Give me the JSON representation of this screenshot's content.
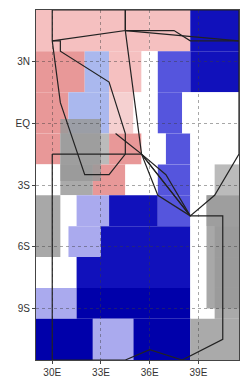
{
  "chart_data": {
    "type": "map",
    "xlim": [
      29.0,
      41.5
    ],
    "ylim": [
      -11.5,
      5.5
    ],
    "xticks": [
      {
        "value": 30,
        "label": "30E"
      },
      {
        "value": 33,
        "label": "33E"
      },
      {
        "value": 36,
        "label": "36E"
      },
      {
        "value": 39,
        "label": "39E"
      }
    ],
    "yticks": [
      {
        "value": 3,
        "label": "3N"
      },
      {
        "value": 0,
        "label": "EQ"
      },
      {
        "value": -3,
        "label": "3S"
      },
      {
        "value": -6,
        "label": "6S"
      },
      {
        "value": -9,
        "label": "9S"
      }
    ],
    "grid": true,
    "blocks": [
      {
        "x0": 29.0,
        "x1": 36.0,
        "y0": 3.5,
        "y1": 5.5,
        "color": "#f5c0c0"
      },
      {
        "x0": 36.0,
        "x1": 38.5,
        "y0": 3.5,
        "y1": 5.5,
        "color": "#f5c0c0"
      },
      {
        "x0": 38.5,
        "x1": 41.5,
        "y0": 3.5,
        "y1": 5.5,
        "color": "#1111bb"
      },
      {
        "x0": 29.0,
        "x1": 32.0,
        "y0": 1.5,
        "y1": 3.5,
        "color": "#e89898"
      },
      {
        "x0": 32.0,
        "x1": 33.5,
        "y0": 1.5,
        "y1": 3.5,
        "color": "#aab8ee"
      },
      {
        "x0": 33.5,
        "x1": 35.5,
        "y0": 1.5,
        "y1": 3.5,
        "color": "#f5c0c0"
      },
      {
        "x0": 35.5,
        "x1": 36.5,
        "y0": 1.5,
        "y1": 3.5,
        "color": "#ffffff"
      },
      {
        "x0": 36.5,
        "x1": 38.5,
        "y0": 1.5,
        "y1": 3.5,
        "color": "#5555dd"
      },
      {
        "x0": 38.5,
        "x1": 41.5,
        "y0": 1.5,
        "y1": 3.5,
        "color": "#1111bb"
      },
      {
        "x0": 29.0,
        "x1": 31.0,
        "y0": -0.5,
        "y1": 1.5,
        "color": "#e89898"
      },
      {
        "x0": 31.0,
        "x1": 33.5,
        "y0": -0.5,
        "y1": 1.5,
        "color": "#aab8ee"
      },
      {
        "x0": 33.5,
        "x1": 35.0,
        "y0": -0.5,
        "y1": 1.5,
        "color": "#f5d0d0"
      },
      {
        "x0": 35.0,
        "x1": 36.5,
        "y0": -0.5,
        "y1": 1.5,
        "color": "#ffffff"
      },
      {
        "x0": 36.5,
        "x1": 38.0,
        "y0": -0.5,
        "y1": 1.5,
        "color": "#5555dd"
      },
      {
        "x0": 38.0,
        "x1": 41.5,
        "y0": -0.5,
        "y1": 1.5,
        "color": "#ffffff"
      },
      {
        "x0": 29.0,
        "x1": 30.5,
        "y0": -2.0,
        "y1": -0.5,
        "color": "#e89898"
      },
      {
        "x0": 30.5,
        "x1": 33.5,
        "y0": -2.0,
        "y1": -0.5,
        "color": "#bbbbbb"
      },
      {
        "x0": 33.5,
        "x1": 35.5,
        "y0": -2.0,
        "y1": -0.5,
        "color": "#e89898"
      },
      {
        "x0": 35.5,
        "x1": 37.0,
        "y0": -2.0,
        "y1": -0.5,
        "color": "#ffffff"
      },
      {
        "x0": 37.0,
        "x1": 38.5,
        "y0": -2.0,
        "y1": -0.5,
        "color": "#5555dd"
      },
      {
        "x0": 38.5,
        "x1": 41.5,
        "y0": -2.0,
        "y1": -0.5,
        "color": "#ffffff"
      },
      {
        "x0": 29.0,
        "x1": 30.5,
        "y0": -3.5,
        "y1": -2.0,
        "color": "#ffffff"
      },
      {
        "x0": 30.5,
        "x1": 32.5,
        "y0": -3.5,
        "y1": -2.0,
        "color": "#aaaaaa"
      },
      {
        "x0": 32.5,
        "x1": 34.5,
        "y0": -3.5,
        "y1": -2.0,
        "color": "#e89898"
      },
      {
        "x0": 34.5,
        "x1": 36.5,
        "y0": -3.5,
        "y1": -2.0,
        "color": "#ffffff"
      },
      {
        "x0": 36.5,
        "x1": 38.5,
        "y0": -3.5,
        "y1": -2.0,
        "color": "#5555dd"
      },
      {
        "x0": 38.5,
        "x1": 40.0,
        "y0": -3.5,
        "y1": -2.0,
        "color": "#ffffff"
      },
      {
        "x0": 40.0,
        "x1": 41.5,
        "y0": -3.5,
        "y1": -2.0,
        "color": "#bbbbbb"
      },
      {
        "x0": 29.0,
        "x1": 31.5,
        "y0": -5.0,
        "y1": -3.5,
        "color": "#ffffff"
      },
      {
        "x0": 31.5,
        "x1": 33.5,
        "y0": -5.0,
        "y1": -3.5,
        "color": "#aaaaee"
      },
      {
        "x0": 33.5,
        "x1": 36.5,
        "y0": -5.0,
        "y1": -3.5,
        "color": "#1111bb"
      },
      {
        "x0": 36.5,
        "x1": 38.5,
        "y0": -5.0,
        "y1": -3.5,
        "color": "#5555dd"
      },
      {
        "x0": 38.5,
        "x1": 39.5,
        "y0": -5.0,
        "y1": -3.5,
        "color": "#ffffff"
      },
      {
        "x0": 39.5,
        "x1": 41.5,
        "y0": -5.0,
        "y1": -3.5,
        "color": "#bbbbbb"
      },
      {
        "x0": 29.0,
        "x1": 31.0,
        "y0": -6.5,
        "y1": -5.0,
        "color": "#ffffff"
      },
      {
        "x0": 31.0,
        "x1": 33.0,
        "y0": -6.5,
        "y1": -5.0,
        "color": "#aaaaee"
      },
      {
        "x0": 33.0,
        "x1": 38.5,
        "y0": -6.5,
        "y1": -5.0,
        "color": "#1111bb"
      },
      {
        "x0": 38.5,
        "x1": 40.0,
        "y0": -6.5,
        "y1": -5.0,
        "color": "#ffffff"
      },
      {
        "x0": 40.0,
        "x1": 41.5,
        "y0": -6.5,
        "y1": -5.0,
        "color": "#aaaaaa"
      },
      {
        "x0": 29.0,
        "x1": 31.5,
        "y0": -8.0,
        "y1": -6.5,
        "color": "#ffffff"
      },
      {
        "x0": 31.5,
        "x1": 38.5,
        "y0": -8.0,
        "y1": -6.5,
        "color": "#1111bb"
      },
      {
        "x0": 38.5,
        "x1": 40.0,
        "y0": -8.0,
        "y1": -6.5,
        "color": "#ffffff"
      },
      {
        "x0": 40.0,
        "x1": 41.5,
        "y0": -8.0,
        "y1": -6.5,
        "color": "#aaaaaa"
      },
      {
        "x0": 29.0,
        "x1": 31.5,
        "y0": -9.5,
        "y1": -8.0,
        "color": "#aaaaee"
      },
      {
        "x0": 31.5,
        "x1": 38.5,
        "y0": -9.5,
        "y1": -8.0,
        "color": "#0000aa"
      },
      {
        "x0": 38.5,
        "x1": 40.0,
        "y0": -9.5,
        "y1": -8.0,
        "color": "#ffffff"
      },
      {
        "x0": 40.0,
        "x1": 41.5,
        "y0": -9.5,
        "y1": -8.0,
        "color": "#aaaaaa"
      },
      {
        "x0": 29.0,
        "x1": 32.5,
        "y0": -11.5,
        "y1": -9.5,
        "color": "#0000aa"
      },
      {
        "x0": 32.5,
        "x1": 35.0,
        "y0": -11.5,
        "y1": -9.5,
        "color": "#aaaaee"
      },
      {
        "x0": 35.0,
        "x1": 38.5,
        "y0": -11.5,
        "y1": -9.5,
        "color": "#0000aa"
      },
      {
        "x0": 38.5,
        "x1": 41.5,
        "y0": -11.5,
        "y1": -9.5,
        "color": "#aaaaaa"
      }
    ],
    "gray_patches": {
      "color": "#999999",
      "rects": [
        {
          "x0": 30.5,
          "x1": 33.0,
          "y0": -2.8,
          "y1": 0.2
        },
        {
          "x0": 29.0,
          "x1": 30.5,
          "y0": -6.5,
          "y1": -3.5
        },
        {
          "x0": 39.5,
          "x1": 41.5,
          "y0": -9.0,
          "y1": -3.5
        }
      ]
    },
    "boundaries": {
      "color": "#222222",
      "lines": [
        {
          "x": [
            30.0,
            30.5,
            30.5,
            33.5,
            33.9,
            34.5,
            34.5,
            33.5,
            32.0,
            30.5,
            30.0
          ],
          "y": [
            4.0,
            4.0,
            3.5,
            2.0,
            1.0,
            -0.5,
            -1.5,
            -2.5,
            -2.5,
            1.0,
            4.0
          ]
        },
        {
          "x": [
            34.5,
            35.5,
            37.5,
            38.5,
            41.5,
            41.5,
            40.0,
            38.5,
            35.5,
            34.5
          ],
          "y": [
            4.5,
            4.5,
            4.5,
            4.0,
            4.0,
            -1.5,
            -3.5,
            -4.5,
            -1.5,
            4.5
          ]
        },
        {
          "x": [
            30.0,
            30.0,
            34.5,
            36.0,
            38.0,
            40.5,
            40.5,
            38.5,
            35.5,
            34.5,
            30.0
          ],
          "y": [
            -1.5,
            -11.5,
            -11.5,
            -11.0,
            -11.5,
            -10.5,
            -4.5,
            -4.5,
            -1.5,
            -1.5,
            -1.5
          ]
        },
        {
          "x": [
            34.5,
            34.5,
            38.5,
            41.5,
            41.5,
            34.5
          ],
          "y": [
            4.5,
            5.5,
            5.5,
            5.5,
            4.0,
            4.5
          ]
        },
        {
          "x": [
            30.0,
            34.5,
            34.5,
            30.0,
            30.0
          ],
          "y": [
            4.0,
            4.5,
            5.5,
            5.5,
            4.0
          ]
        },
        {
          "x": [
            33.9,
            35.5,
            37.0,
            38.5,
            38.5,
            36.5,
            35.5,
            33.9
          ],
          "y": [
            -0.5,
            -1.5,
            -2.5,
            -4.5,
            -4.5,
            -3.5,
            -1.5,
            -0.5
          ]
        }
      ]
    }
  }
}
